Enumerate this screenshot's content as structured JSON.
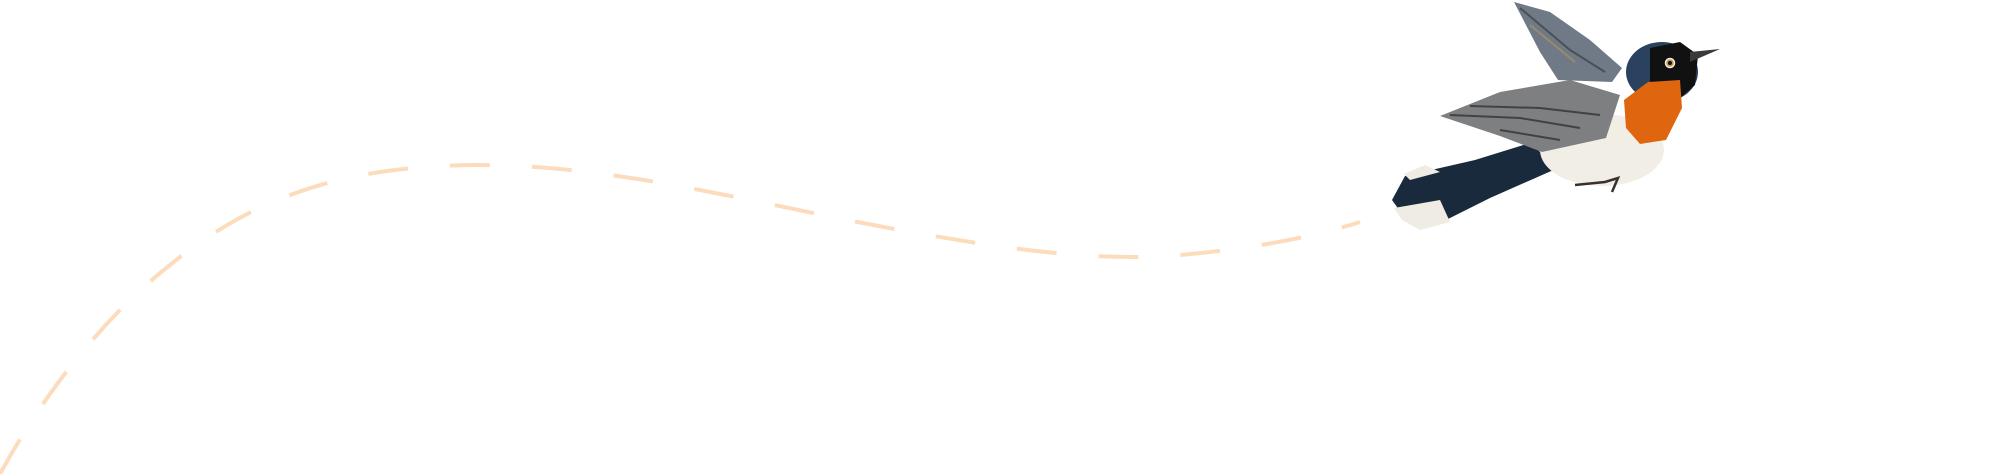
{
  "illustration": {
    "subject": "bird-in-flight",
    "colors": {
      "flight_path": "#fcdcbd",
      "bird_back": "#1f3550",
      "bird_throat": "#e0650f",
      "bird_belly": "#f1eee6",
      "bird_wing": "#7d7f80",
      "background": "#ffffff"
    }
  }
}
